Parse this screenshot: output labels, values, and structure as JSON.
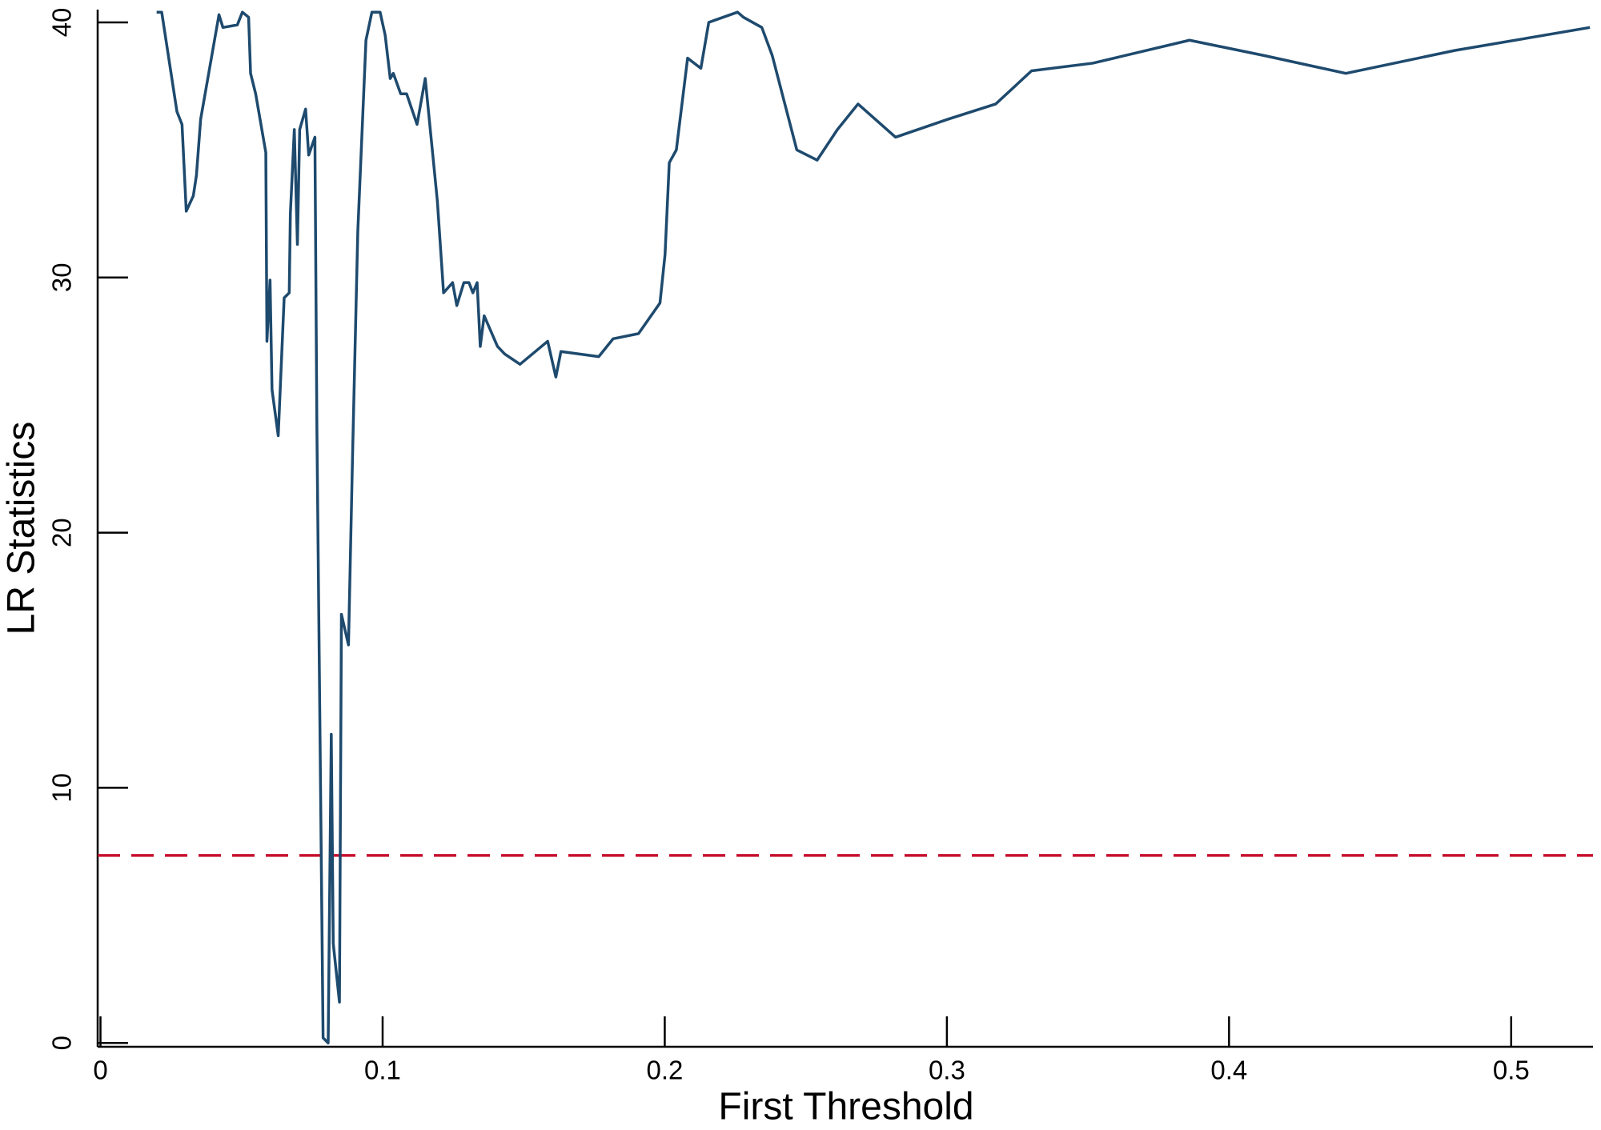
{
  "chart_data": {
    "type": "line",
    "x_label": "First Threshold",
    "y_label": "LR Statistics",
    "xlim": [
      -0.001,
      0.529
    ],
    "ylim": [
      -0.15,
      40.5
    ],
    "xticks": [
      0,
      0.1,
      0.2,
      0.3,
      0.4,
      0.5
    ],
    "yticks": [
      0,
      10,
      20,
      30,
      40
    ],
    "hline": {
      "value": 7.35,
      "color": "#c8102e",
      "dashed": true
    },
    "series": [
      {
        "color": "#1e4a6e",
        "x": [
          0.0199,
          0.0217,
          0.0271,
          0.0289,
          0.0304,
          0.0329,
          0.034,
          0.0355,
          0.042,
          0.0434,
          0.0485,
          0.0503,
          0.0525,
          0.0532,
          0.055,
          0.0586,
          0.059,
          0.0601,
          0.0608,
          0.063,
          0.0651,
          0.0669,
          0.0673,
          0.0687,
          0.0698,
          0.0706,
          0.0727,
          0.0738,
          0.076,
          0.0767,
          0.0789,
          0.0807,
          0.0818,
          0.0825,
          0.0847,
          0.0854,
          0.0879,
          0.0894,
          0.0912,
          0.0941,
          0.0962,
          0.0991,
          0.1009,
          0.1027,
          0.1038,
          0.1064,
          0.1085,
          0.1122,
          0.1151,
          0.1194,
          0.1216,
          0.1248,
          0.1263,
          0.1288,
          0.1306,
          0.132,
          0.1335,
          0.1346,
          0.136,
          0.1407,
          0.1433,
          0.1487,
          0.1585,
          0.1614,
          0.1632,
          0.1766,
          0.1817,
          0.1907,
          0.1983,
          0.2001,
          0.2016,
          0.2041,
          0.2081,
          0.2128,
          0.2156,
          0.2258,
          0.2279,
          0.2344,
          0.2381,
          0.2468,
          0.254,
          0.2612,
          0.2685,
          0.2818,
          0.3003,
          0.3173,
          0.33,
          0.3517,
          0.386,
          0.4124,
          0.4414,
          0.4801,
          0.5279
        ],
        "values": [
          40.4,
          40.4,
          36.5,
          36.0,
          32.6,
          33.2,
          34.0,
          36.2,
          40.3,
          39.8,
          39.9,
          40.4,
          40.2,
          38.0,
          37.2,
          34.9,
          27.5,
          29.9,
          25.6,
          23.8,
          29.2,
          29.4,
          32.5,
          35.8,
          31.3,
          35.8,
          36.6,
          34.8,
          35.5,
          24.1,
          0.2,
          0.0,
          12.1,
          3.9,
          1.6,
          16.8,
          15.6,
          23.3,
          31.8,
          39.3,
          40.4,
          40.4,
          39.5,
          37.8,
          38.0,
          37.2,
          37.2,
          36.0,
          37.8,
          33.0,
          29.4,
          29.8,
          28.9,
          29.8,
          29.8,
          29.4,
          29.8,
          27.3,
          28.5,
          27.3,
          27.0,
          26.6,
          27.5,
          26.1,
          27.1,
          26.9,
          27.6,
          27.8,
          29.0,
          30.9,
          34.5,
          35.0,
          38.6,
          38.2,
          40.0,
          40.4,
          40.2,
          39.8,
          38.7,
          35.0,
          34.6,
          35.8,
          36.8,
          35.5,
          36.2,
          36.8,
          38.1,
          38.4,
          39.3,
          38.7,
          38.0,
          38.9,
          39.8
        ]
      }
    ]
  }
}
